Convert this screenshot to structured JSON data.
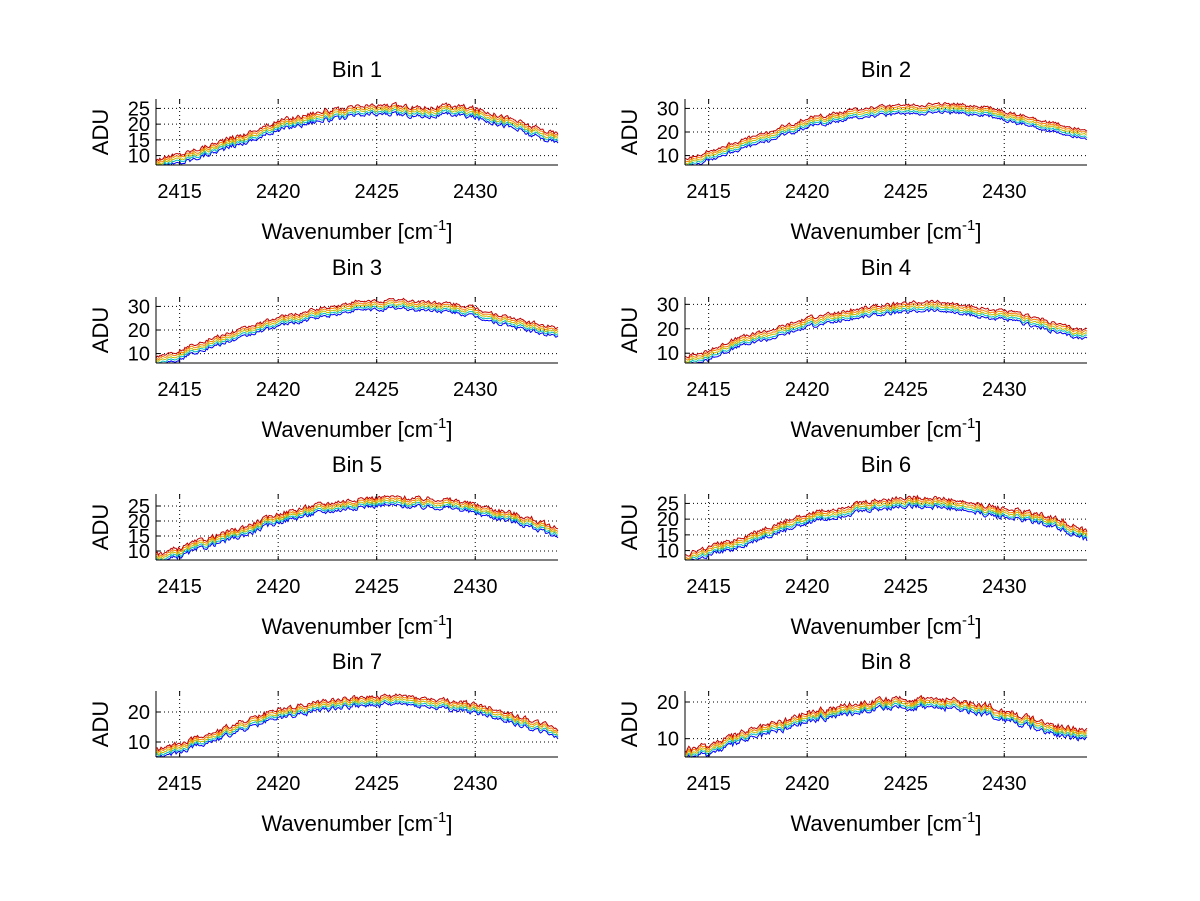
{
  "figure": {
    "background": "#ffffff",
    "series_colors": [
      "#0000ff",
      "#00bfbf",
      "#bfbf00",
      "#ff7f00",
      "#bf0000"
    ]
  },
  "chart_data": [
    {
      "type": "line",
      "title": "Bin 1",
      "xlabel": "Wavenumber [cm",
      "xlabel_sup": "-1",
      "xlabel_suffix": "]",
      "ylabel": "ADU",
      "xlim": [
        2413.8,
        2434.2
      ],
      "ylim": [
        7,
        28
      ],
      "xticks": [
        2415,
        2420,
        2425,
        2430
      ],
      "yticks": [
        10,
        15,
        20,
        25
      ],
      "grid": true,
      "series_count": 5,
      "series_offset": 0.7,
      "profile": {
        "x": [
          2413.8,
          2415,
          2416,
          2417,
          2418,
          2419,
          2420,
          2421,
          2422,
          2423,
          2424,
          2425,
          2426,
          2427,
          2428,
          2429,
          2430,
          2431,
          2432,
          2433,
          2434.2
        ],
        "y": [
          7.5,
          9,
          11,
          13,
          15,
          17,
          19.5,
          21,
          22.5,
          23,
          24,
          24.5,
          24.5,
          24,
          24,
          24.5,
          23.5,
          22,
          20,
          17.5,
          15.5
        ]
      }
    },
    {
      "type": "line",
      "title": "Bin 2",
      "xlabel": "Wavenumber [cm",
      "xlabel_sup": "-1",
      "xlabel_suffix": "]",
      "ylabel": "ADU",
      "xlim": [
        2413.8,
        2434.2
      ],
      "ylim": [
        6,
        34
      ],
      "xticks": [
        2415,
        2420,
        2425,
        2430
      ],
      "yticks": [
        10,
        20,
        30
      ],
      "grid": true,
      "series_count": 5,
      "series_offset": 0.9,
      "profile": {
        "x": [
          2413.8,
          2415,
          2416,
          2417,
          2418,
          2419,
          2420,
          2421,
          2422,
          2423,
          2424,
          2425,
          2426,
          2427,
          2428,
          2429,
          2430,
          2431,
          2432,
          2433,
          2434.2
        ],
        "y": [
          7,
          10,
          13,
          15.5,
          18,
          21,
          24,
          25.5,
          27,
          28.5,
          29,
          29.5,
          30,
          30,
          29.5,
          29,
          27,
          25,
          23,
          21,
          19.5
        ]
      }
    },
    {
      "type": "line",
      "title": "Bin 3",
      "xlabel": "Wavenumber [cm",
      "xlabel_sup": "-1",
      "xlabel_suffix": "]",
      "ylabel": "ADU",
      "xlim": [
        2413.8,
        2434.2
      ],
      "ylim": [
        6,
        34
      ],
      "xticks": [
        2415,
        2420,
        2425,
        2430
      ],
      "yticks": [
        10,
        20,
        30
      ],
      "grid": true,
      "series_count": 5,
      "series_offset": 0.9,
      "profile": {
        "x": [
          2413.8,
          2415,
          2416,
          2417,
          2418,
          2419,
          2420,
          2421,
          2422,
          2423,
          2424,
          2425,
          2426,
          2427,
          2428,
          2429,
          2430,
          2431,
          2432,
          2433,
          2434.2
        ],
        "y": [
          7,
          9.5,
          13,
          15.5,
          18,
          21,
          23.5,
          25,
          27,
          28.5,
          30,
          30.5,
          31,
          30.5,
          30,
          29,
          27.5,
          25,
          23,
          21,
          19
        ]
      }
    },
    {
      "type": "line",
      "title": "Bin 4",
      "xlabel": "Wavenumber [cm",
      "xlabel_sup": "-1",
      "xlabel_suffix": "]",
      "ylabel": "ADU",
      "xlim": [
        2413.8,
        2434.2
      ],
      "ylim": [
        6,
        33
      ],
      "xticks": [
        2415,
        2420,
        2425,
        2430
      ],
      "yticks": [
        10,
        20,
        30
      ],
      "grid": true,
      "series_count": 5,
      "series_offset": 0.9,
      "profile": {
        "x": [
          2413.8,
          2415,
          2416,
          2417,
          2418,
          2419,
          2420,
          2421,
          2422,
          2423,
          2424,
          2425,
          2426,
          2427,
          2428,
          2429,
          2430,
          2431,
          2432,
          2433,
          2434.2
        ],
        "y": [
          7,
          9,
          13,
          15.5,
          17.5,
          20,
          22.5,
          24,
          25.5,
          27,
          28,
          28.5,
          29.5,
          29,
          27.5,
          26.5,
          25.5,
          24,
          22,
          19.5,
          17.5
        ]
      }
    },
    {
      "type": "line",
      "title": "Bin 5",
      "xlabel": "Wavenumber [cm",
      "xlabel_sup": "-1",
      "xlabel_suffix": "]",
      "ylabel": "ADU",
      "xlim": [
        2413.8,
        2434.2
      ],
      "ylim": [
        7,
        29
      ],
      "xticks": [
        2415,
        2420,
        2425,
        2430
      ],
      "yticks": [
        10,
        15,
        20,
        25
      ],
      "grid": true,
      "series_count": 5,
      "series_offset": 0.7,
      "profile": {
        "x": [
          2413.8,
          2415,
          2416,
          2417,
          2418,
          2419,
          2420,
          2421,
          2422,
          2423,
          2424,
          2425,
          2426,
          2427,
          2428,
          2429,
          2430,
          2431,
          2432,
          2433,
          2434.2
        ],
        "y": [
          7.5,
          9.5,
          12,
          14,
          16,
          18.5,
          21,
          22.5,
          24,
          25,
          26,
          26.5,
          26.5,
          26,
          26,
          25.5,
          24,
          22.5,
          21,
          19,
          16
        ]
      }
    },
    {
      "type": "line",
      "title": "Bin 6",
      "xlabel": "Wavenumber [cm",
      "xlabel_sup": "-1",
      "xlabel_suffix": "]",
      "ylabel": "ADU",
      "xlim": [
        2413.8,
        2434.2
      ],
      "ylim": [
        7,
        28
      ],
      "xticks": [
        2415,
        2420,
        2425,
        2430
      ],
      "yticks": [
        10,
        15,
        20,
        25
      ],
      "grid": true,
      "series_count": 5,
      "series_offset": 0.7,
      "profile": {
        "x": [
          2413.8,
          2415,
          2416,
          2417,
          2418,
          2419,
          2420,
          2421,
          2422,
          2423,
          2424,
          2425,
          2426,
          2427,
          2428,
          2429,
          2430,
          2431,
          2432,
          2433,
          2434.2
        ],
        "y": [
          7.5,
          9.5,
          11.5,
          13.5,
          16,
          18,
          20.5,
          21.5,
          23,
          24,
          25,
          25.5,
          25.5,
          25,
          24,
          23,
          22,
          21,
          20,
          18,
          14.5
        ]
      }
    },
    {
      "type": "line",
      "title": "Bin 7",
      "xlabel": "Wavenumber [cm",
      "xlabel_sup": "-1",
      "xlabel_suffix": "]",
      "ylabel": "ADU",
      "xlim": [
        2413.8,
        2434.2
      ],
      "ylim": [
        5,
        27
      ],
      "xticks": [
        2415,
        2420,
        2425,
        2430
      ],
      "yticks": [
        10,
        20
      ],
      "grid": true,
      "series_count": 5,
      "series_offset": 0.7,
      "profile": {
        "x": [
          2413.8,
          2415,
          2416,
          2417,
          2418,
          2419,
          2420,
          2421,
          2422,
          2423,
          2424,
          2425,
          2426,
          2427,
          2428,
          2429,
          2430,
          2431,
          2432,
          2433,
          2434.2
        ],
        "y": [
          6,
          8,
          10.5,
          12.5,
          15,
          17,
          19.5,
          20.5,
          22,
          23,
          23.5,
          23.5,
          24,
          23.5,
          22.5,
          22,
          21,
          19.5,
          17.5,
          15.5,
          13
        ]
      }
    },
    {
      "type": "line",
      "title": "Bin 8",
      "xlabel": "Wavenumber [cm",
      "xlabel_sup": "-1",
      "xlabel_suffix": "]",
      "ylabel": "ADU",
      "xlim": [
        2413.8,
        2434.2
      ],
      "ylim": [
        5,
        23
      ],
      "xticks": [
        2415,
        2420,
        2425,
        2430
      ],
      "yticks": [
        10,
        20
      ],
      "grid": true,
      "series_count": 5,
      "series_offset": 0.6,
      "profile": {
        "x": [
          2413.8,
          2415,
          2416,
          2417,
          2418,
          2419,
          2420,
          2421,
          2422,
          2423,
          2424,
          2425,
          2426,
          2427,
          2428,
          2429,
          2430,
          2431,
          2432,
          2433,
          2434.2
        ],
        "y": [
          5.5,
          7,
          9,
          11,
          12.5,
          14,
          16,
          17,
          18,
          19,
          19.5,
          19.5,
          20,
          19.5,
          19,
          18,
          16.5,
          15,
          13.5,
          12,
          11
        ]
      }
    }
  ]
}
